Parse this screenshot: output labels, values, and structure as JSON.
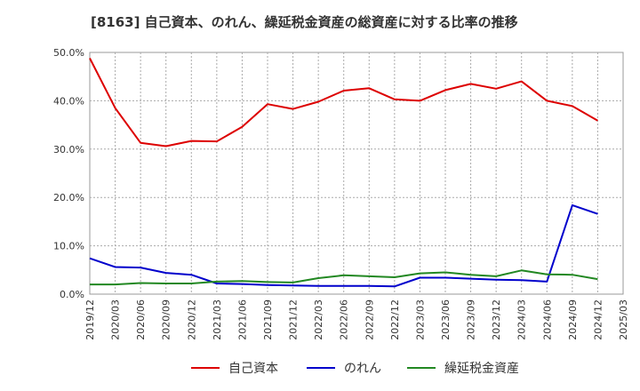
{
  "chart_data": {
    "type": "line",
    "title": "[8163]  自己資本、のれん、繰延税金資産の総資産に対する比率の推移",
    "xlabel": "",
    "ylabel": "",
    "ylim": [
      0,
      50
    ],
    "yticks": [
      "0.0%",
      "10.0%",
      "20.0%",
      "30.0%",
      "40.0%",
      "50.0%"
    ],
    "x": [
      "2019/12",
      "2020/03",
      "2020/06",
      "2020/09",
      "2020/12",
      "2021/03",
      "2021/06",
      "2021/09",
      "2021/12",
      "2022/03",
      "2022/06",
      "2022/09",
      "2022/12",
      "2023/03",
      "2023/06",
      "2023/09",
      "2023/12",
      "2024/03",
      "2024/06",
      "2024/09",
      "2024/12",
      "2025/03"
    ],
    "series": [
      {
        "name": "自己資本",
        "color": "#dd0000",
        "values": [
          48.8,
          38.5,
          31.3,
          30.6,
          31.7,
          31.6,
          34.6,
          39.3,
          38.3,
          39.8,
          42.1,
          42.6,
          40.3,
          40.0,
          42.2,
          43.5,
          42.5,
          44.0,
          40.0,
          38.9,
          35.9,
          null
        ]
      },
      {
        "name": "のれん",
        "color": "#0000cc",
        "values": [
          7.4,
          5.6,
          5.5,
          4.4,
          4.0,
          2.2,
          2.1,
          1.9,
          1.8,
          1.7,
          1.7,
          1.7,
          1.6,
          3.4,
          3.4,
          3.2,
          3.0,
          2.9,
          2.6,
          18.4,
          16.6,
          null
        ]
      },
      {
        "name": "繰延税金資産",
        "color": "#228822",
        "values": [
          2.0,
          2.0,
          2.3,
          2.2,
          2.2,
          2.6,
          2.7,
          2.5,
          2.4,
          3.3,
          3.9,
          3.7,
          3.5,
          4.3,
          4.5,
          4.0,
          3.7,
          4.9,
          4.1,
          4.0,
          3.1,
          null
        ]
      }
    ],
    "legend_position": "bottom",
    "grid": true
  }
}
